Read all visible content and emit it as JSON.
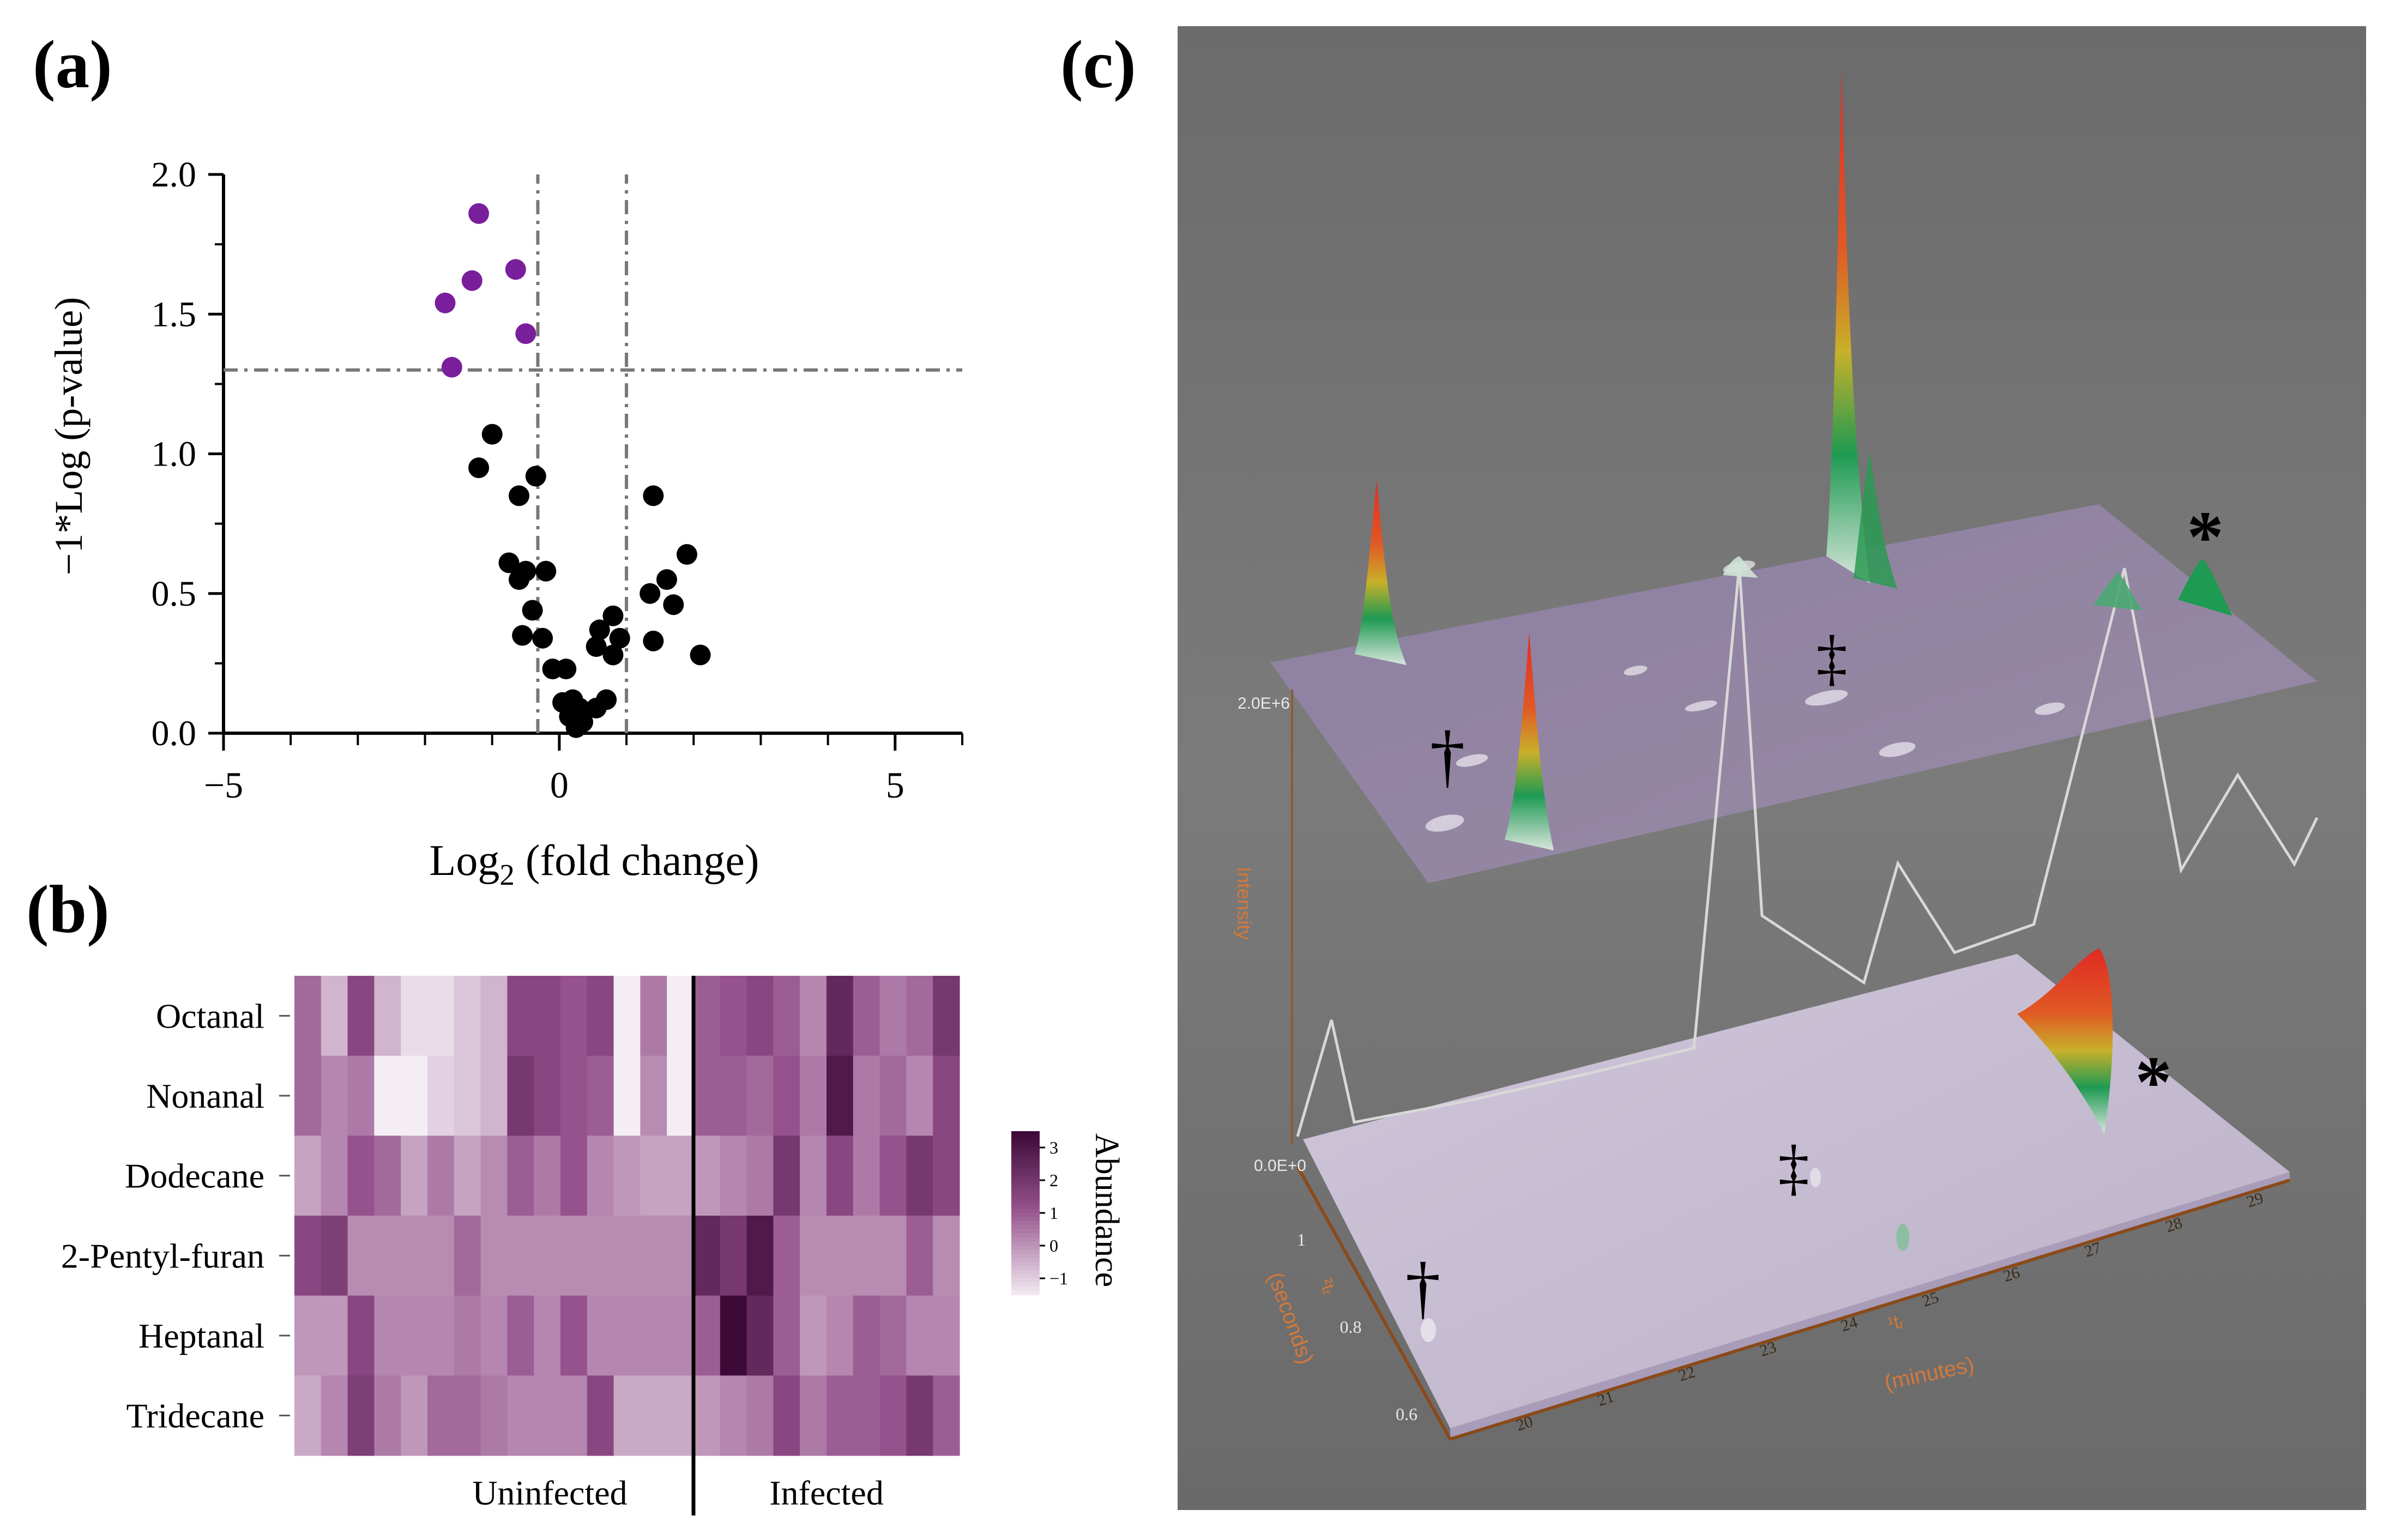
{
  "panels": {
    "a": "(a)",
    "b": "(b)",
    "c": "(c)"
  },
  "colors": {
    "significant": "#7a1f9c",
    "nonsignificant": "#000000",
    "heat_low": "#f4eef4",
    "heat_high": "#3d0a38",
    "surface_top": "#8f7e9f",
    "surface_bottom": "#c9bfd4",
    "axis_orange": "#c0652a",
    "background_c": "#6e6e6e"
  },
  "chart_data": [
    {
      "type": "scatter",
      "panel": "a",
      "title": "",
      "xlabel": "Log",
      "xlabel_sub": "2",
      "xlabel_rest": " (fold change)",
      "ylabel": "−1*Log (p-value)",
      "xlim": [
        -5,
        6
      ],
      "ylim": [
        0,
        2.0
      ],
      "xticks": [
        -5,
        0,
        5
      ],
      "xtick_labels": [
        "−5",
        "0",
        "5"
      ],
      "xminor": [
        -4,
        -3,
        -2,
        -1,
        1,
        2,
        3,
        4,
        6
      ],
      "yticks": [
        0,
        0.5,
        1.0,
        1.5,
        2.0
      ],
      "ytick_labels": [
        "0.0",
        "0.5",
        "1.0",
        "1.5",
        "2.0"
      ],
      "threshold_lines": {
        "x": [
          -0.32,
          1.0
        ],
        "y": 1.3
      },
      "series": [
        {
          "name": "significant",
          "points": [
            [
              -1.2,
              1.86
            ],
            [
              -0.65,
              1.66
            ],
            [
              -1.3,
              1.62
            ],
            [
              -1.7,
              1.54
            ],
            [
              -0.5,
              1.43
            ],
            [
              -1.6,
              1.31
            ]
          ]
        },
        {
          "name": "nonsignificant",
          "points": [
            [
              -1.0,
              1.07
            ],
            [
              -1.2,
              0.95
            ],
            [
              -0.35,
              0.92
            ],
            [
              -0.6,
              0.85
            ],
            [
              1.4,
              0.85
            ],
            [
              1.9,
              0.64
            ],
            [
              -0.75,
              0.61
            ],
            [
              -0.5,
              0.58
            ],
            [
              -0.2,
              0.58
            ],
            [
              -0.6,
              0.55
            ],
            [
              1.6,
              0.55
            ],
            [
              1.35,
              0.5
            ],
            [
              -0.4,
              0.44
            ],
            [
              1.7,
              0.46
            ],
            [
              0.8,
              0.42
            ],
            [
              0.6,
              0.37
            ],
            [
              -0.55,
              0.35
            ],
            [
              -0.25,
              0.34
            ],
            [
              0.9,
              0.34
            ],
            [
              0.55,
              0.31
            ],
            [
              1.4,
              0.33
            ],
            [
              2.1,
              0.28
            ],
            [
              0.8,
              0.28
            ],
            [
              -0.1,
              0.23
            ],
            [
              0.1,
              0.23
            ],
            [
              0.2,
              0.12
            ],
            [
              0.7,
              0.12
            ],
            [
              0.05,
              0.11
            ],
            [
              0.3,
              0.09
            ],
            [
              0.55,
              0.09
            ],
            [
              0.15,
              0.06
            ],
            [
              0.35,
              0.04
            ],
            [
              0.25,
              0.02
            ]
          ]
        }
      ]
    },
    {
      "type": "heatmap",
      "panel": "b",
      "rows": [
        "Octanal",
        "Nonanal",
        "Dodecane",
        "2-Pentyl-furan",
        "Heptanal",
        "Tridecane"
      ],
      "groups": [
        "Uninfected",
        "Infected"
      ],
      "group_sizes": [
        15,
        10
      ],
      "legend_title": "Abundance",
      "legend_ticks": [
        3,
        2,
        1,
        0,
        -1
      ],
      "legend_tick_labels": [
        "3",
        "2",
        "1",
        "0",
        "−1"
      ],
      "value_range": [
        -1.5,
        3.5
      ],
      "values": [
        [
          0.8,
          -0.5,
          1.5,
          -0.5,
          -1.2,
          -1.2,
          -0.8,
          -0.5,
          1.5,
          1.5,
          1.2,
          1.5,
          -1.5,
          0.5,
          -1.5,
          1.0,
          1.2,
          1.5,
          1.0,
          0.3,
          2.5,
          1.0,
          0.5,
          0.8,
          2.0
        ],
        [
          0.8,
          0.3,
          0.5,
          -1.5,
          -1.5,
          -1.0,
          -0.8,
          -0.5,
          2.0,
          1.5,
          1.2,
          1.0,
          -1.5,
          0.2,
          -1.5,
          1.0,
          1.0,
          0.8,
          1.2,
          0.5,
          3.0,
          0.5,
          0.8,
          0.3,
          1.5
        ],
        [
          -0.2,
          0.3,
          1.2,
          0.8,
          -0.2,
          0.5,
          -0.2,
          0.2,
          1.0,
          0.5,
          1.2,
          0.3,
          0.0,
          -0.2,
          -0.2,
          0.0,
          0.3,
          0.5,
          2.0,
          0.3,
          1.5,
          0.5,
          1.2,
          2.0,
          1.5
        ],
        [
          1.5,
          1.8,
          0.2,
          0.2,
          0.2,
          0.2,
          0.8,
          0.2,
          0.2,
          0.2,
          0.2,
          0.2,
          0.2,
          0.2,
          0.2,
          2.5,
          2.0,
          3.0,
          1.0,
          0.2,
          0.2,
          0.2,
          0.2,
          1.0,
          0.2
        ],
        [
          0.0,
          0.0,
          1.5,
          0.3,
          0.3,
          0.3,
          0.5,
          0.3,
          1.0,
          0.3,
          1.2,
          0.3,
          0.3,
          0.3,
          0.3,
          1.0,
          3.5,
          2.5,
          1.0,
          0.0,
          0.3,
          1.0,
          0.8,
          0.3,
          0.3
        ],
        [
          -0.3,
          0.3,
          1.8,
          0.5,
          0.0,
          0.8,
          0.8,
          0.5,
          0.3,
          0.3,
          0.3,
          1.5,
          -0.3,
          -0.3,
          -0.3,
          0.0,
          0.3,
          0.5,
          1.5,
          0.5,
          1.0,
          1.0,
          1.2,
          2.0,
          1.0
        ]
      ]
    },
    {
      "type": "area",
      "panel": "c",
      "description_labels": {
        "top_y_label": "2.0E+6",
        "bottom_y_label": "0.0E+0",
        "intensity_label": "Intensity",
        "d1_label": "¹tᵣ",
        "d1_unit": "(minutes)",
        "d2_label": "²tᵣ",
        "d2_unit": "(seconds)",
        "d1_ticks": [
          "20",
          "21",
          "22",
          "23",
          "24",
          "25",
          "26",
          "27",
          "28",
          "29"
        ],
        "d2_ticks": [
          "1",
          "0.8",
          "0.6"
        ],
        "markers": [
          "†",
          "‡",
          "*"
        ]
      },
      "trace_1d": [
        [
          20.0,
          0.02
        ],
        [
          20.3,
          0.8
        ],
        [
          20.5,
          0.05
        ],
        [
          21.5,
          0.06
        ],
        [
          22.5,
          0.1
        ],
        [
          23.5,
          0.15
        ],
        [
          23.9,
          3.5
        ],
        [
          24.1,
          1.0
        ],
        [
          25.0,
          0.4
        ],
        [
          25.3,
          1.2
        ],
        [
          25.8,
          0.5
        ],
        [
          26.5,
          0.6
        ],
        [
          27.3,
          3.0
        ],
        [
          27.8,
          0.8
        ],
        [
          28.3,
          1.4
        ],
        [
          28.8,
          0.7
        ],
        [
          29.0,
          1.0
        ]
      ]
    }
  ]
}
